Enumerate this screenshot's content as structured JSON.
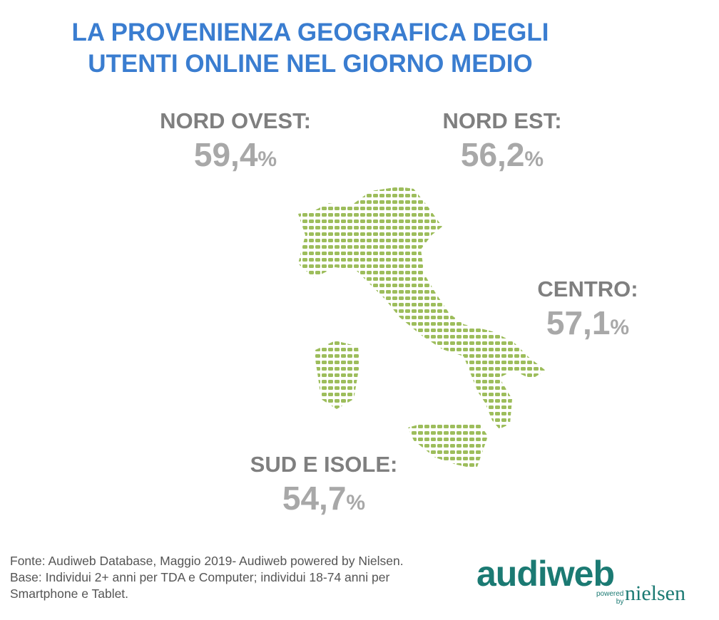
{
  "header": {
    "title": [
      "LA PROVENIENZA GEOGRAFICA DEGLI",
      "UTENTI ONLINE NEL GIORNO MEDIO"
    ]
  },
  "regions": [
    {
      "name": "NORD OVEST:",
      "value": "59,4",
      "unit": "%"
    },
    {
      "name": "NORD EST:",
      "value": "56,2",
      "unit": "%"
    },
    {
      "name": "CENTRO:",
      "value": "57,1",
      "unit": "%"
    },
    {
      "name": "SUD E ISOLE:",
      "value": "54,7",
      "unit": "%"
    }
  ],
  "source": [
    "Fonte: Audiweb Database, Maggio 2019- Audiweb powered by Nielsen.",
    "Base: Individui 2+ anni per TDA e Computer; individui 18-74 anni per",
    "Smartphone e Tablet."
  ],
  "logo": {
    "brand": "audiweb",
    "powered": "powered",
    "by": "by",
    "partner": "nielsen"
  }
}
